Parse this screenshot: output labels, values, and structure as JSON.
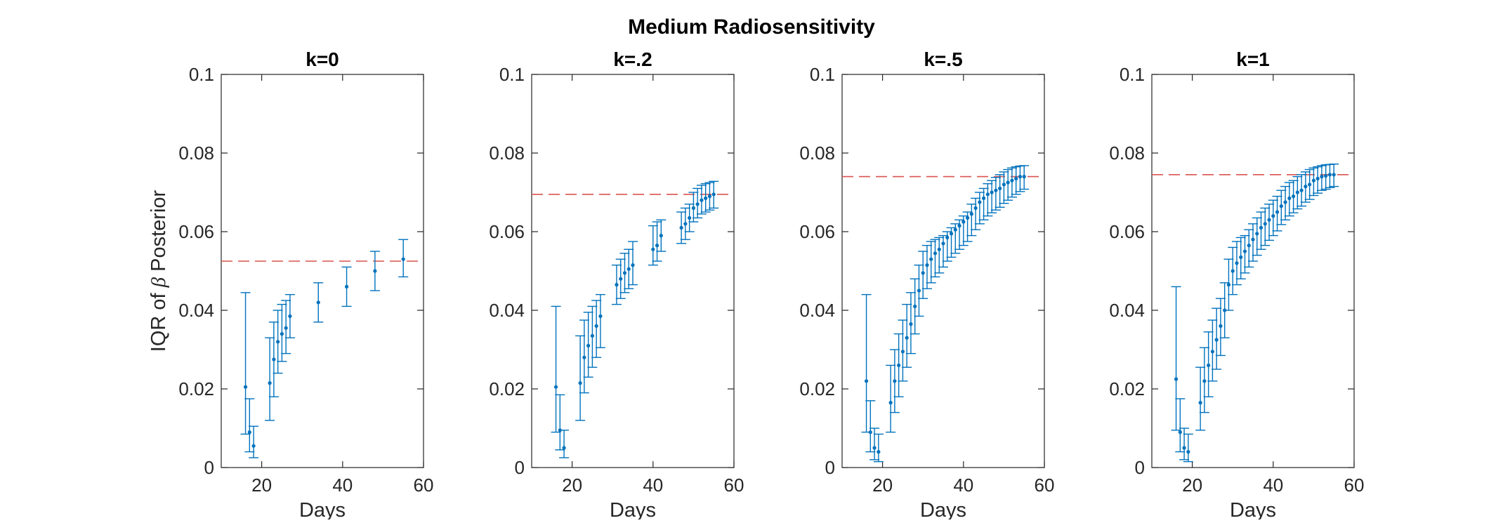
{
  "figure_title": "Medium Radiosensitivity",
  "colors": {
    "data": "#0072BD",
    "reference": "#D9534F",
    "axis": "#262626"
  },
  "chart_data": [
    {
      "type": "scatter",
      "title": "k=0",
      "xlabel": "Days",
      "ylabel_parts": [
        "IQR of ",
        "β",
        " Posterior"
      ],
      "xlim": [
        10,
        60
      ],
      "ylim": [
        0,
        0.1
      ],
      "xticks": [
        20,
        40,
        60
      ],
      "yticks": [
        0,
        0.02,
        0.04,
        0.06,
        0.08,
        0.1
      ],
      "reference_line": 0.0525,
      "series": [
        {
          "name": "IQR of beta posterior",
          "x": [
            16,
            17,
            18,
            22,
            23,
            24,
            25,
            26,
            27,
            34,
            41,
            48,
            55
          ],
          "y": [
            0.0205,
            0.009,
            0.0055,
            0.0215,
            0.0275,
            0.032,
            0.034,
            0.0355,
            0.0385,
            0.042,
            0.046,
            0.05,
            0.053
          ],
          "lower": [
            0.0085,
            0.004,
            0.0025,
            0.012,
            0.018,
            0.024,
            0.027,
            0.029,
            0.033,
            0.037,
            0.041,
            0.045,
            0.0485
          ],
          "upper": [
            0.0445,
            0.0175,
            0.0105,
            0.033,
            0.037,
            0.04,
            0.0415,
            0.0425,
            0.044,
            0.047,
            0.051,
            0.055,
            0.058
          ]
        }
      ]
    },
    {
      "type": "scatter",
      "title": "k=.2",
      "xlabel": "Days",
      "xlim": [
        10,
        60
      ],
      "ylim": [
        0,
        0.1
      ],
      "xticks": [
        20,
        40,
        60
      ],
      "yticks": [
        0,
        0.02,
        0.04,
        0.06,
        0.08,
        0.1
      ],
      "reference_line": 0.0695,
      "series": [
        {
          "name": "IQR of beta posterior",
          "x": [
            16,
            17,
            18,
            22,
            23,
            24,
            25,
            26,
            27,
            31,
            32,
            33,
            34,
            35,
            40,
            41,
            42,
            47,
            48,
            49,
            50,
            51,
            52,
            53,
            54,
            55
          ],
          "y": [
            0.0205,
            0.0095,
            0.005,
            0.0215,
            0.028,
            0.031,
            0.0335,
            0.036,
            0.0385,
            0.0465,
            0.048,
            0.0495,
            0.0505,
            0.0515,
            0.0555,
            0.0565,
            0.059,
            0.061,
            0.062,
            0.0635,
            0.066,
            0.067,
            0.068,
            0.0685,
            0.069,
            0.0695
          ],
          "lower": [
            0.009,
            0.0045,
            0.0025,
            0.012,
            0.019,
            0.023,
            0.0255,
            0.028,
            0.0305,
            0.0415,
            0.043,
            0.0445,
            0.0455,
            0.0465,
            0.0515,
            0.0525,
            0.055,
            0.057,
            0.058,
            0.06,
            0.0625,
            0.0635,
            0.0645,
            0.065,
            0.0655,
            0.066
          ],
          "upper": [
            0.041,
            0.0185,
            0.0095,
            0.0335,
            0.0375,
            0.0395,
            0.041,
            0.0425,
            0.044,
            0.0515,
            0.053,
            0.0545,
            0.0555,
            0.0575,
            0.0615,
            0.0625,
            0.063,
            0.065,
            0.066,
            0.067,
            0.07,
            0.071,
            0.0718,
            0.0722,
            0.0725,
            0.0728
          ]
        }
      ]
    },
    {
      "type": "scatter",
      "title": "k=.5",
      "xlabel": "Days",
      "xlim": [
        10,
        60
      ],
      "ylim": [
        0,
        0.1
      ],
      "xticks": [
        20,
        40,
        60
      ],
      "yticks": [
        0,
        0.02,
        0.04,
        0.06,
        0.08,
        0.1
      ],
      "reference_line": 0.074,
      "series": [
        {
          "name": "IQR of beta posterior",
          "x": [
            16,
            17,
            18,
            19,
            22,
            23,
            24,
            25,
            26,
            27,
            28,
            29,
            30,
            31,
            32,
            33,
            34,
            35,
            36,
            37,
            38,
            39,
            40,
            41,
            42,
            43,
            44,
            45,
            46,
            47,
            48,
            49,
            50,
            51,
            52,
            53,
            54,
            55
          ],
          "y": [
            0.022,
            0.009,
            0.005,
            0.004,
            0.0165,
            0.022,
            0.026,
            0.0295,
            0.033,
            0.0365,
            0.041,
            0.045,
            0.0495,
            0.0515,
            0.053,
            0.0545,
            0.0555,
            0.057,
            0.0585,
            0.0595,
            0.0605,
            0.0615,
            0.0625,
            0.0635,
            0.0645,
            0.066,
            0.0675,
            0.0685,
            0.0695,
            0.07,
            0.0705,
            0.071,
            0.072,
            0.0725,
            0.073,
            0.0735,
            0.074,
            0.074
          ],
          "lower": [
            0.009,
            0.004,
            0.002,
            0.0015,
            0.009,
            0.014,
            0.018,
            0.022,
            0.0255,
            0.029,
            0.034,
            0.0385,
            0.043,
            0.0455,
            0.047,
            0.0485,
            0.0495,
            0.051,
            0.0525,
            0.0535,
            0.0545,
            0.0555,
            0.0565,
            0.0575,
            0.059,
            0.0605,
            0.062,
            0.063,
            0.064,
            0.0648,
            0.0655,
            0.0662,
            0.0672,
            0.068,
            0.0688,
            0.0695,
            0.0702,
            0.0708
          ],
          "upper": [
            0.044,
            0.017,
            0.01,
            0.0085,
            0.026,
            0.03,
            0.034,
            0.0375,
            0.0415,
            0.0445,
            0.048,
            0.0515,
            0.055,
            0.0565,
            0.0575,
            0.058,
            0.0585,
            0.059,
            0.06,
            0.061,
            0.062,
            0.063,
            0.064,
            0.065,
            0.067,
            0.0685,
            0.07,
            0.071,
            0.0722,
            0.073,
            0.0738,
            0.0745,
            0.0752,
            0.0758,
            0.0762,
            0.0765,
            0.0767,
            0.0768
          ]
        }
      ]
    },
    {
      "type": "scatter",
      "title": "k=1",
      "xlabel": "Days",
      "xlim": [
        10,
        60
      ],
      "ylim": [
        0,
        0.1
      ],
      "xticks": [
        20,
        40,
        60
      ],
      "yticks": [
        0,
        0.02,
        0.04,
        0.06,
        0.08,
        0.1
      ],
      "reference_line": 0.0745,
      "series": [
        {
          "name": "IQR of beta posterior",
          "x": [
            16,
            17,
            18,
            19,
            22,
            23,
            24,
            25,
            26,
            27,
            28,
            29,
            30,
            31,
            32,
            33,
            34,
            35,
            36,
            37,
            38,
            39,
            40,
            41,
            42,
            43,
            44,
            45,
            46,
            47,
            48,
            49,
            50,
            51,
            52,
            53,
            54,
            55
          ],
          "y": [
            0.0225,
            0.009,
            0.005,
            0.004,
            0.0165,
            0.022,
            0.026,
            0.0295,
            0.0325,
            0.036,
            0.04,
            0.0465,
            0.05,
            0.052,
            0.0535,
            0.055,
            0.0565,
            0.058,
            0.0595,
            0.061,
            0.062,
            0.063,
            0.064,
            0.065,
            0.0665,
            0.0675,
            0.0685,
            0.069,
            0.07,
            0.0705,
            0.0715,
            0.072,
            0.073,
            0.0735,
            0.074,
            0.0742,
            0.0745,
            0.0745
          ],
          "lower": [
            0.0095,
            0.004,
            0.002,
            0.0015,
            0.0095,
            0.014,
            0.018,
            0.022,
            0.025,
            0.0285,
            0.033,
            0.04,
            0.044,
            0.0465,
            0.048,
            0.0495,
            0.051,
            0.0525,
            0.054,
            0.0555,
            0.0565,
            0.0578,
            0.059,
            0.0602,
            0.0618,
            0.063,
            0.064,
            0.0648,
            0.0658,
            0.0665,
            0.0675,
            0.0682,
            0.0692,
            0.0698,
            0.0705,
            0.0708,
            0.0712,
            0.0715
          ],
          "upper": [
            0.046,
            0.0175,
            0.01,
            0.0085,
            0.0255,
            0.0305,
            0.0345,
            0.0375,
            0.0405,
            0.043,
            0.047,
            0.053,
            0.056,
            0.0575,
            0.0585,
            0.059,
            0.0605,
            0.062,
            0.0635,
            0.065,
            0.066,
            0.067,
            0.068,
            0.069,
            0.0705,
            0.0715,
            0.0725,
            0.073,
            0.074,
            0.0745,
            0.0752,
            0.0758,
            0.0762,
            0.0765,
            0.0768,
            0.077,
            0.0771,
            0.0772
          ]
        }
      ]
    }
  ]
}
